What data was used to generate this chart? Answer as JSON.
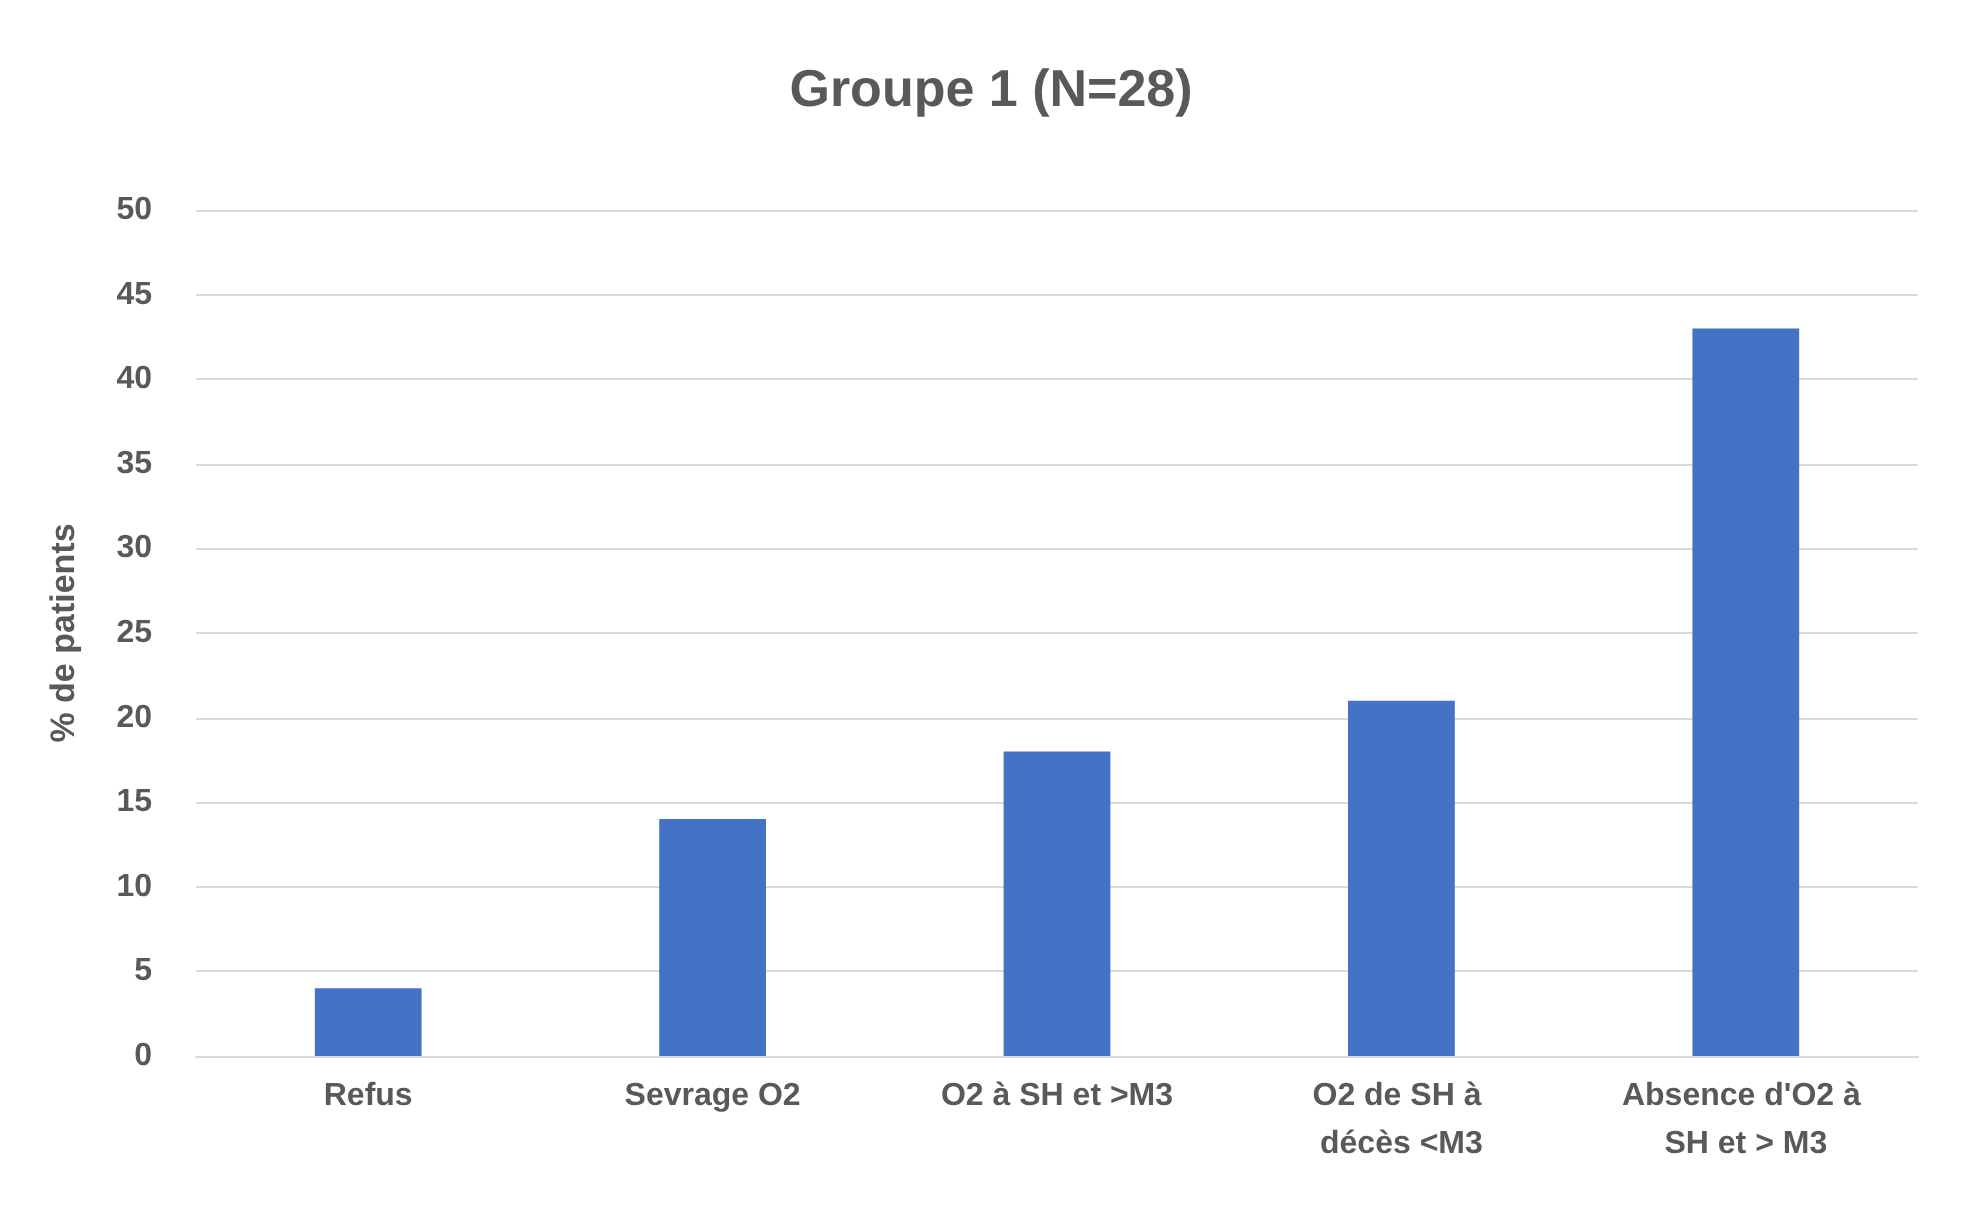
{
  "chart_data": {
    "type": "bar",
    "title": "Groupe 1 (N=28)",
    "ylabel": "% de patients",
    "categories": [
      "Refus",
      "Sevrage O2",
      "O2 à SH et >M3",
      "O2 de SH à décès <M3",
      "Absence d'O2 à SH et > M3"
    ],
    "values": [
      4,
      14,
      18,
      21,
      43
    ],
    "color": "#4472c4",
    "ylim": [
      0,
      50
    ],
    "yticks": [
      0,
      5,
      10,
      15,
      20,
      25,
      30,
      35,
      40,
      45,
      50
    ],
    "grid": "y"
  }
}
